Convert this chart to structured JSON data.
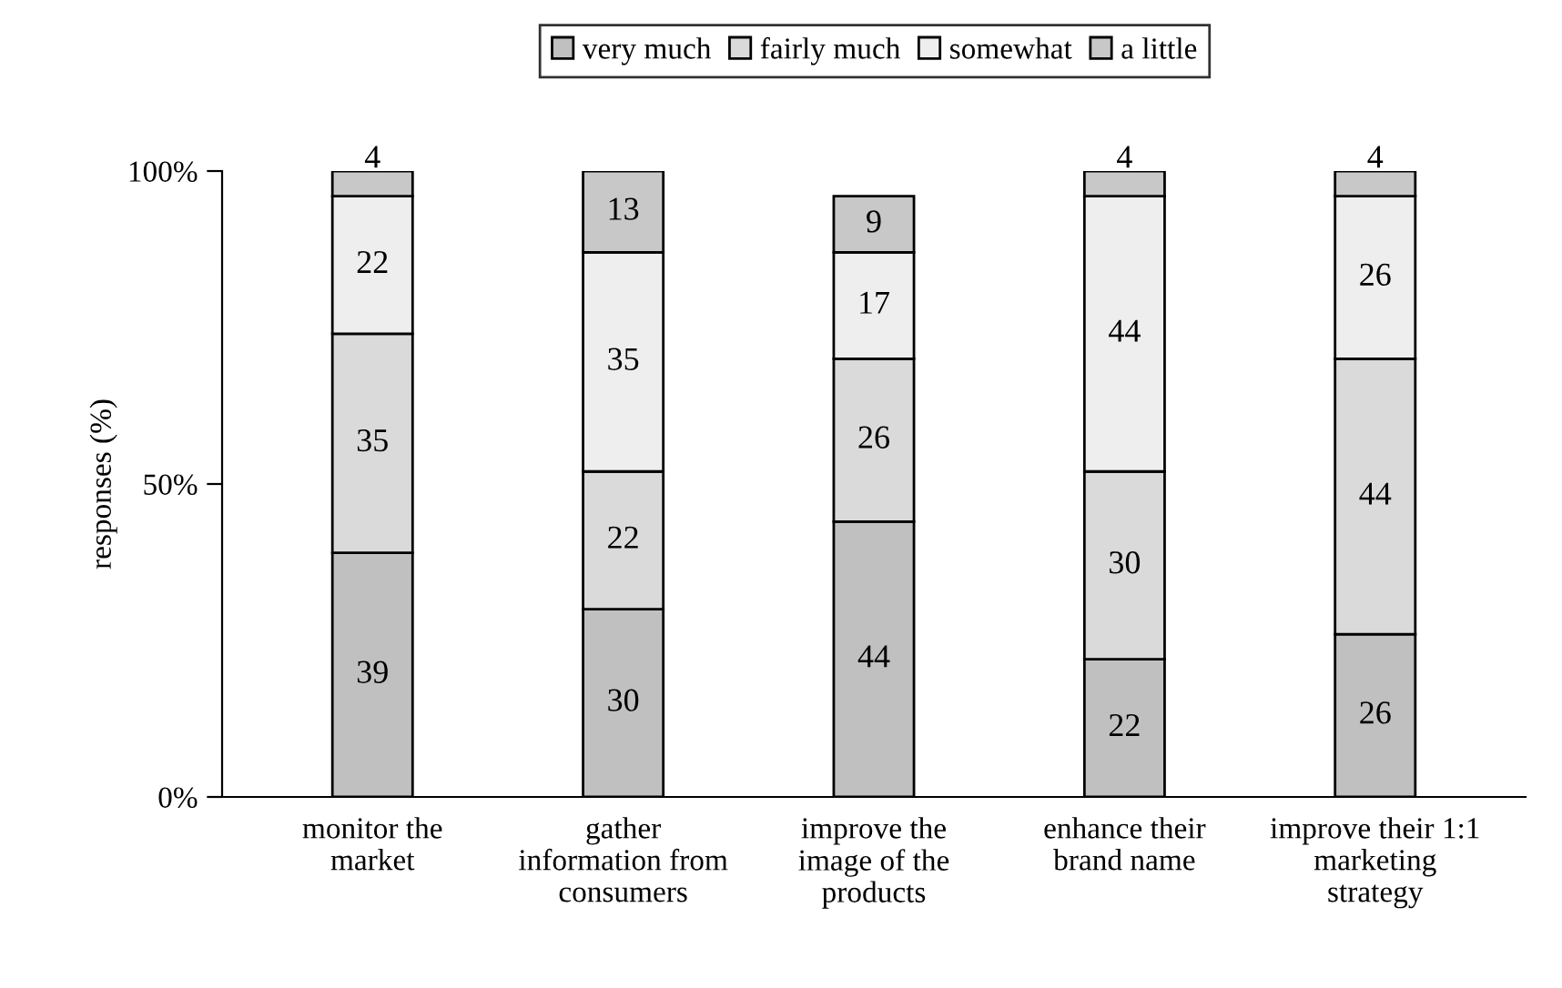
{
  "chart_data": {
    "type": "bar",
    "stacked": true,
    "ylabel": "responses (%)",
    "categories": [
      "monitor the\nmarket",
      "gather\ninformation from\nconsumers",
      "improve the\nimage of the\nproducts",
      "enhance their\nbrand name",
      "improve their 1:1\nmarketing\nstrategy"
    ],
    "series": [
      {
        "name": "very much",
        "color": "#c0c0c0",
        "values": [
          39,
          30,
          44,
          22,
          26
        ]
      },
      {
        "name": "fairly much",
        "color": "#dadada",
        "values": [
          35,
          22,
          26,
          30,
          44
        ]
      },
      {
        "name": "somewhat",
        "color": "#eeeeee",
        "values": [
          22,
          35,
          17,
          44,
          26
        ]
      },
      {
        "name": "a little",
        "color": "#c8c8c8",
        "values": [
          4,
          13,
          9,
          4,
          4
        ]
      }
    ],
    "ylim": [
      0,
      100
    ],
    "yticks": [
      {
        "value": 0,
        "label": "0%"
      },
      {
        "value": 50,
        "label": "50%"
      },
      {
        "value": 100,
        "label": "100%"
      }
    ],
    "data_labels": true,
    "legend": "top",
    "grid": false
  }
}
